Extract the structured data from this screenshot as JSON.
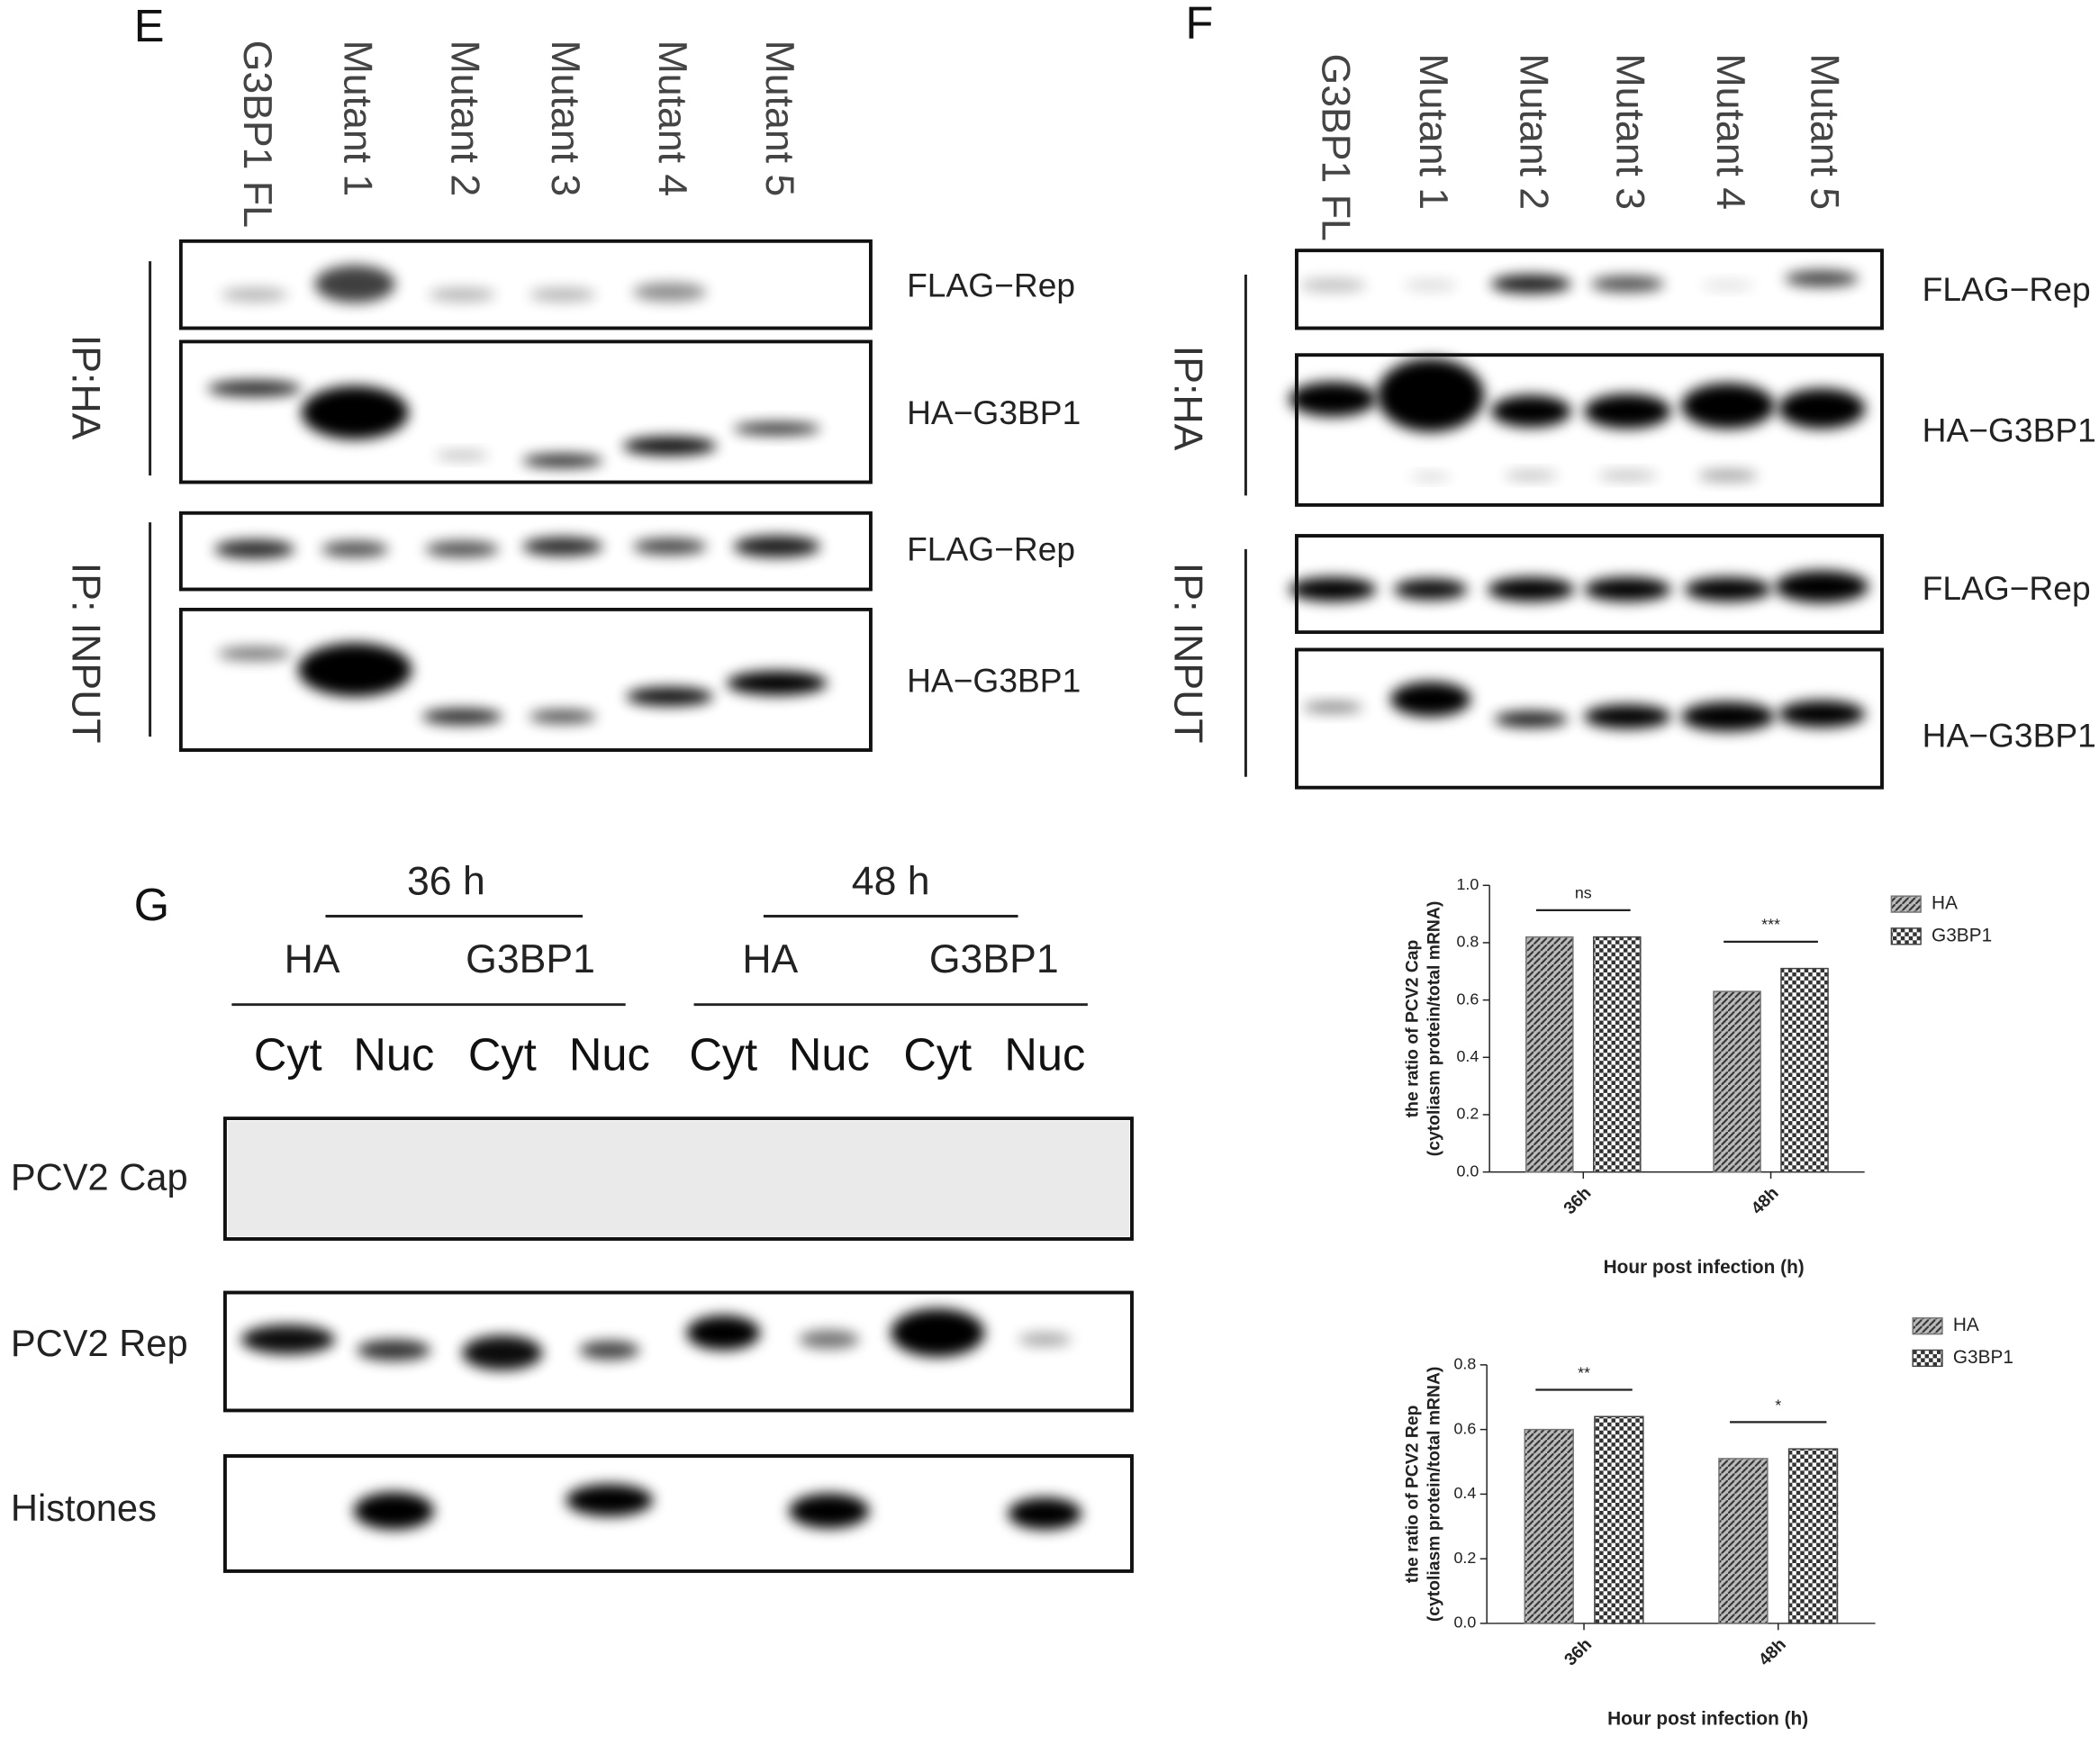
{
  "panels": {
    "E": {
      "label": "E",
      "lanes": [
        "G3BP1 FL",
        "Mutant 1",
        "Mutant 2",
        "Mutant 3",
        "Mutant 4",
        "Mutant 5"
      ],
      "rows": [
        "FLAG−Rep",
        "HA−G3BP1",
        "FLAG−Rep",
        "HA−G3BP1"
      ],
      "groups": [
        "IP:HA",
        "IP: INPUT"
      ]
    },
    "F": {
      "label": "F",
      "lanes": [
        "G3BP1 FL",
        "Mutant 1",
        "Mutant 2",
        "Mutant 3",
        "Mutant 4",
        "Mutant 5"
      ],
      "rows": [
        "FLAG−Rep",
        "HA−G3BP1",
        "FLAG−Rep",
        "HA−G3BP1"
      ],
      "groups": [
        "IP:HA",
        "IP: INPUT"
      ]
    },
    "G": {
      "label": "G",
      "times": [
        "36 h",
        "48 h"
      ],
      "conditions": [
        "HA",
        "G3BP1",
        "HA",
        "G3BP1"
      ],
      "fractions": [
        "Cyt",
        "Nuc",
        "Cyt",
        "Nuc",
        "Cyt",
        "Nuc",
        "Cyt",
        "Nuc"
      ],
      "rows": [
        "PCV2 Cap",
        "PCV2 Rep",
        "Histones"
      ]
    }
  },
  "chart_data": [
    {
      "type": "bar",
      "ylabel": [
        "the ratio of PCV2 Cap",
        "(cytoliasm protein/total mRNA)"
      ],
      "xlabel": "Hour post infection (h)",
      "categories": [
        "36h",
        "48h"
      ],
      "annotations": [
        "ns",
        "***"
      ],
      "series": [
        {
          "name": "HA",
          "color": "#777777",
          "hatch": "diagonal",
          "values": [
            0.82,
            0.63
          ]
        },
        {
          "name": "G3BP1",
          "color": "#444444",
          "hatch": "checker",
          "values": [
            0.82,
            0.71
          ]
        }
      ],
      "ylim": [
        0,
        1.0
      ],
      "yticks": [
        {
          "value": 0,
          "label": "0.0"
        },
        0.2,
        0.4,
        0.6,
        0.8,
        {
          "value": 1.0,
          "label": "1.0"
        }
      ]
    },
    {
      "type": "bar",
      "ylabel": [
        "the ratio of PCV2 Rep",
        "(cytoliasm protein/total mRNA)"
      ],
      "xlabel": "Hour post infection (h)",
      "categories": [
        "36h",
        "48h"
      ],
      "annotations": [
        "**",
        "*"
      ],
      "series": [
        {
          "name": "HA",
          "color": "#777777",
          "hatch": "diagonal",
          "values": [
            0.6,
            0.51
          ]
        },
        {
          "name": "G3BP1",
          "color": "#444444",
          "hatch": "checker",
          "values": [
            0.64,
            0.54
          ]
        }
      ],
      "ylim": [
        0,
        0.8
      ],
      "yticks": [
        {
          "value": 0,
          "label": "0.0"
        },
        0.2,
        0.4,
        0.6,
        0.8
      ]
    }
  ]
}
